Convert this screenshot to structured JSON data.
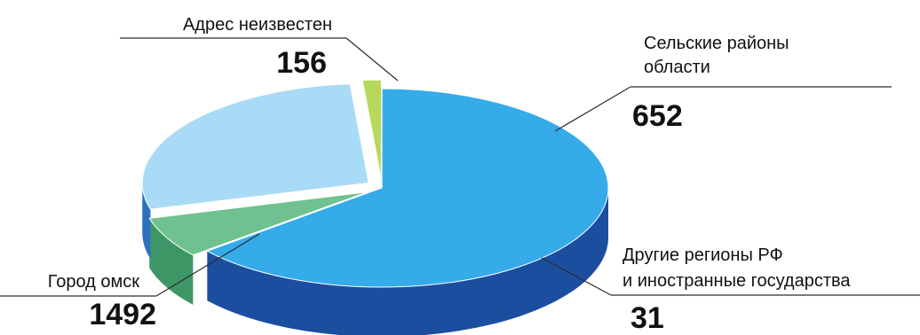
{
  "chart_data": {
    "type": "pie",
    "title": "",
    "series": [
      {
        "slices": [
          {
            "key": "omsk",
            "label_lines": [
              "Город омск"
            ],
            "value": 1492,
            "value_label": "1492",
            "color_top": "#35abea",
            "color_side": "#1c4ea0"
          },
          {
            "key": "unknown",
            "label_lines": [
              "Адрес неизвестен"
            ],
            "value": 156,
            "value_label": "156",
            "color_top": "#6fc28f",
            "color_side": "#3d9665"
          },
          {
            "key": "rural",
            "label_lines": [
              "Сельские районы",
              "области"
            ],
            "value": 652,
            "value_label": "652",
            "color_top": "#a9dbf7",
            "color_side": "#2d70bf"
          },
          {
            "key": "other",
            "label_lines": [
              "Другие регионы РФ",
              "и иностранные государства"
            ],
            "value": 31,
            "value_label": "31",
            "color_top": "#b6d85b",
            "color_side": "#7fb233"
          }
        ]
      }
    ],
    "style": "3d-exploded-pie"
  }
}
